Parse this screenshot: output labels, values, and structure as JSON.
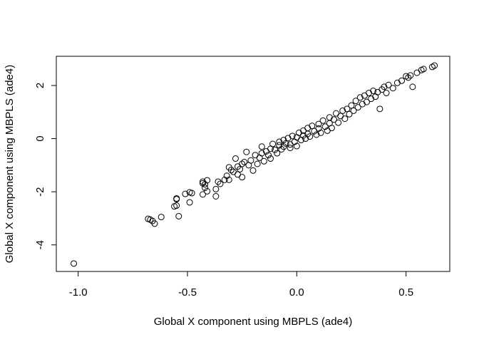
{
  "chart_data": {
    "type": "scatter",
    "title": "",
    "xlabel": "Global X component using MBPLS (ade4)",
    "ylabel": "Global X component using MBPLS (ade4)",
    "xlim": [
      -1.1,
      0.7
    ],
    "ylim": [
      -5.0,
      3.1
    ],
    "xticks": [
      -1.0,
      -0.5,
      0.0,
      0.5
    ],
    "xtick_labels": [
      "-1.0",
      "-0.5",
      "0.0",
      "0.5"
    ],
    "yticks": [
      -4,
      -2,
      0,
      2
    ],
    "ytick_labels": [
      "-4",
      "-2",
      "0",
      "2"
    ],
    "grid": false,
    "marker": "open-circle",
    "marker_color": "#000000",
    "points": [
      [
        -1.02,
        -4.7
      ],
      [
        -0.68,
        -3.02
      ],
      [
        -0.67,
        -3.05
      ],
      [
        -0.66,
        -3.1
      ],
      [
        -0.65,
        -3.2
      ],
      [
        -0.62,
        -2.95
      ],
      [
        -0.55,
        -2.25
      ],
      [
        -0.55,
        -2.28
      ],
      [
        -0.56,
        -2.55
      ],
      [
        -0.55,
        -2.52
      ],
      [
        -0.54,
        -2.92
      ],
      [
        -0.51,
        -2.08
      ],
      [
        -0.49,
        -2.02
      ],
      [
        -0.48,
        -2.05
      ],
      [
        -0.49,
        -2.4
      ],
      [
        -0.43,
        -1.62
      ],
      [
        -0.43,
        -1.68
      ],
      [
        -0.42,
        -1.72
      ],
      [
        -0.41,
        -1.57
      ],
      [
        -0.42,
        -1.85
      ],
      [
        -0.43,
        -2.1
      ],
      [
        -0.41,
        -1.98
      ],
      [
        -0.37,
        -1.9
      ],
      [
        -0.37,
        -2.17
      ],
      [
        -0.36,
        -1.62
      ],
      [
        -0.35,
        -1.7
      ],
      [
        -0.33,
        -1.55
      ],
      [
        -0.32,
        -1.4
      ],
      [
        -0.31,
        -1.08
      ],
      [
        -0.3,
        -1.18
      ],
      [
        -0.31,
        -1.55
      ],
      [
        -0.29,
        -1.25
      ],
      [
        -0.28,
        -0.75
      ],
      [
        -0.27,
        -1.05
      ],
      [
        -0.27,
        -1.35
      ],
      [
        -0.26,
        -1.15
      ],
      [
        -0.25,
        -0.95
      ],
      [
        -0.25,
        -1.45
      ],
      [
        -0.24,
        -0.88
      ],
      [
        -0.23,
        -0.5
      ],
      [
        -0.22,
        -1.0
      ],
      [
        -0.21,
        -0.82
      ],
      [
        -0.2,
        -1.2
      ],
      [
        -0.19,
        -0.62
      ],
      [
        -0.18,
        -0.95
      ],
      [
        -0.17,
        -0.72
      ],
      [
        -0.16,
        -0.55
      ],
      [
        -0.16,
        -0.3
      ],
      [
        -0.15,
        -0.85
      ],
      [
        -0.14,
        -0.48
      ],
      [
        -0.13,
        -0.62
      ],
      [
        -0.12,
        -0.38
      ],
      [
        -0.12,
        -0.75
      ],
      [
        -0.11,
        -0.2
      ],
      [
        -0.1,
        -0.42
      ],
      [
        -0.09,
        -0.55
      ],
      [
        -0.08,
        -0.25
      ],
      [
        -0.08,
        -0.12
      ],
      [
        -0.07,
        -0.4
      ],
      [
        -0.06,
        -0.05
      ],
      [
        -0.06,
        -0.3
      ],
      [
        -0.05,
        -0.18
      ],
      [
        -0.04,
        0.02
      ],
      [
        -0.03,
        -0.35
      ],
      [
        -0.03,
        -0.22
      ],
      [
        -0.02,
        0.1
      ],
      [
        -0.01,
        -0.12
      ],
      [
        0.0,
        -0.28
      ],
      [
        0.0,
        0.05
      ],
      [
        0.01,
        0.22
      ],
      [
        0.02,
        -0.05
      ],
      [
        0.03,
        0.12
      ],
      [
        0.03,
        0.3
      ],
      [
        0.04,
        0.0
      ],
      [
        0.05,
        0.4
      ],
      [
        0.05,
        0.18
      ],
      [
        0.06,
        0.08
      ],
      [
        0.07,
        0.48
      ],
      [
        0.08,
        0.28
      ],
      [
        0.09,
        0.15
      ],
      [
        0.1,
        0.55
      ],
      [
        0.1,
        0.38
      ],
      [
        0.11,
        0.22
      ],
      [
        0.12,
        0.68
      ],
      [
        0.13,
        0.45
      ],
      [
        0.14,
        0.3
      ],
      [
        0.15,
        0.8
      ],
      [
        0.15,
        0.58
      ],
      [
        0.16,
        0.4
      ],
      [
        0.17,
        0.72
      ],
      [
        0.18,
        0.95
      ],
      [
        0.19,
        0.6
      ],
      [
        0.2,
        0.85
      ],
      [
        0.21,
        1.05
      ],
      [
        0.22,
        0.75
      ],
      [
        0.23,
        1.12
      ],
      [
        0.24,
        0.92
      ],
      [
        0.25,
        1.25
      ],
      [
        0.26,
        1.05
      ],
      [
        0.27,
        1.42
      ],
      [
        0.28,
        1.18
      ],
      [
        0.29,
        1.55
      ],
      [
        0.3,
        1.3
      ],
      [
        0.31,
        1.62
      ],
      [
        0.32,
        1.38
      ],
      [
        0.33,
        1.72
      ],
      [
        0.34,
        1.5
      ],
      [
        0.35,
        1.8
      ],
      [
        0.36,
        1.58
      ],
      [
        0.37,
        1.75
      ],
      [
        0.38,
        1.12
      ],
      [
        0.39,
        1.85
      ],
      [
        0.4,
        1.95
      ],
      [
        0.41,
        1.72
      ],
      [
        0.42,
        2.02
      ],
      [
        0.44,
        1.9
      ],
      [
        0.46,
        2.1
      ],
      [
        0.48,
        2.18
      ],
      [
        0.5,
        2.35
      ],
      [
        0.51,
        2.3
      ],
      [
        0.52,
        2.38
      ],
      [
        0.53,
        1.95
      ],
      [
        0.55,
        2.48
      ],
      [
        0.57,
        2.58
      ],
      [
        0.58,
        2.62
      ],
      [
        0.62,
        2.7
      ],
      [
        0.63,
        2.75
      ]
    ]
  }
}
